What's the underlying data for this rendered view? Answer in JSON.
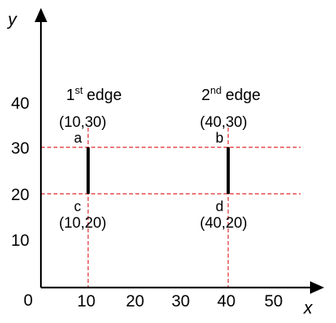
{
  "axes": {
    "x_label": "x",
    "y_label": "y",
    "origin_label": "0"
  },
  "x_ticks": [
    "10",
    "20",
    "30",
    "40",
    "50"
  ],
  "y_ticks": [
    "10",
    "20",
    "30",
    "40"
  ],
  "edges": [
    {
      "ordinal": "1",
      "suffix": "st",
      "word": "edge"
    },
    {
      "ordinal": "2",
      "suffix": "nd",
      "word": "edge"
    }
  ],
  "points": {
    "a": {
      "name": "a",
      "coord": "(10,30)"
    },
    "b": {
      "name": "b",
      "coord": "(40,30)"
    },
    "c": {
      "name": "c",
      "coord": "(10,20)"
    },
    "d": {
      "name": "d",
      "coord": "(40,20)"
    }
  },
  "colors": {
    "guide_lines": "#e0262a",
    "edges": "#000000",
    "axes": "#000000"
  }
}
